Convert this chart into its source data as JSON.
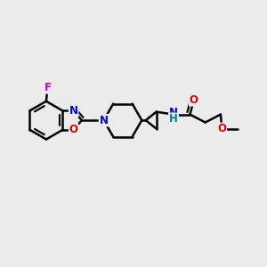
{
  "bg_color": "#ebebeb",
  "bond_color": "#000000",
  "bond_width": 1.8,
  "atom_colors": {
    "F": "#cc00cc",
    "N": "#0000ee",
    "O": "#dd0000",
    "H": "#008080",
    "C": "#000000"
  },
  "font_size_atom": 8.5,
  "fig_width": 3.0,
  "fig_height": 3.0,
  "dpi": 100
}
